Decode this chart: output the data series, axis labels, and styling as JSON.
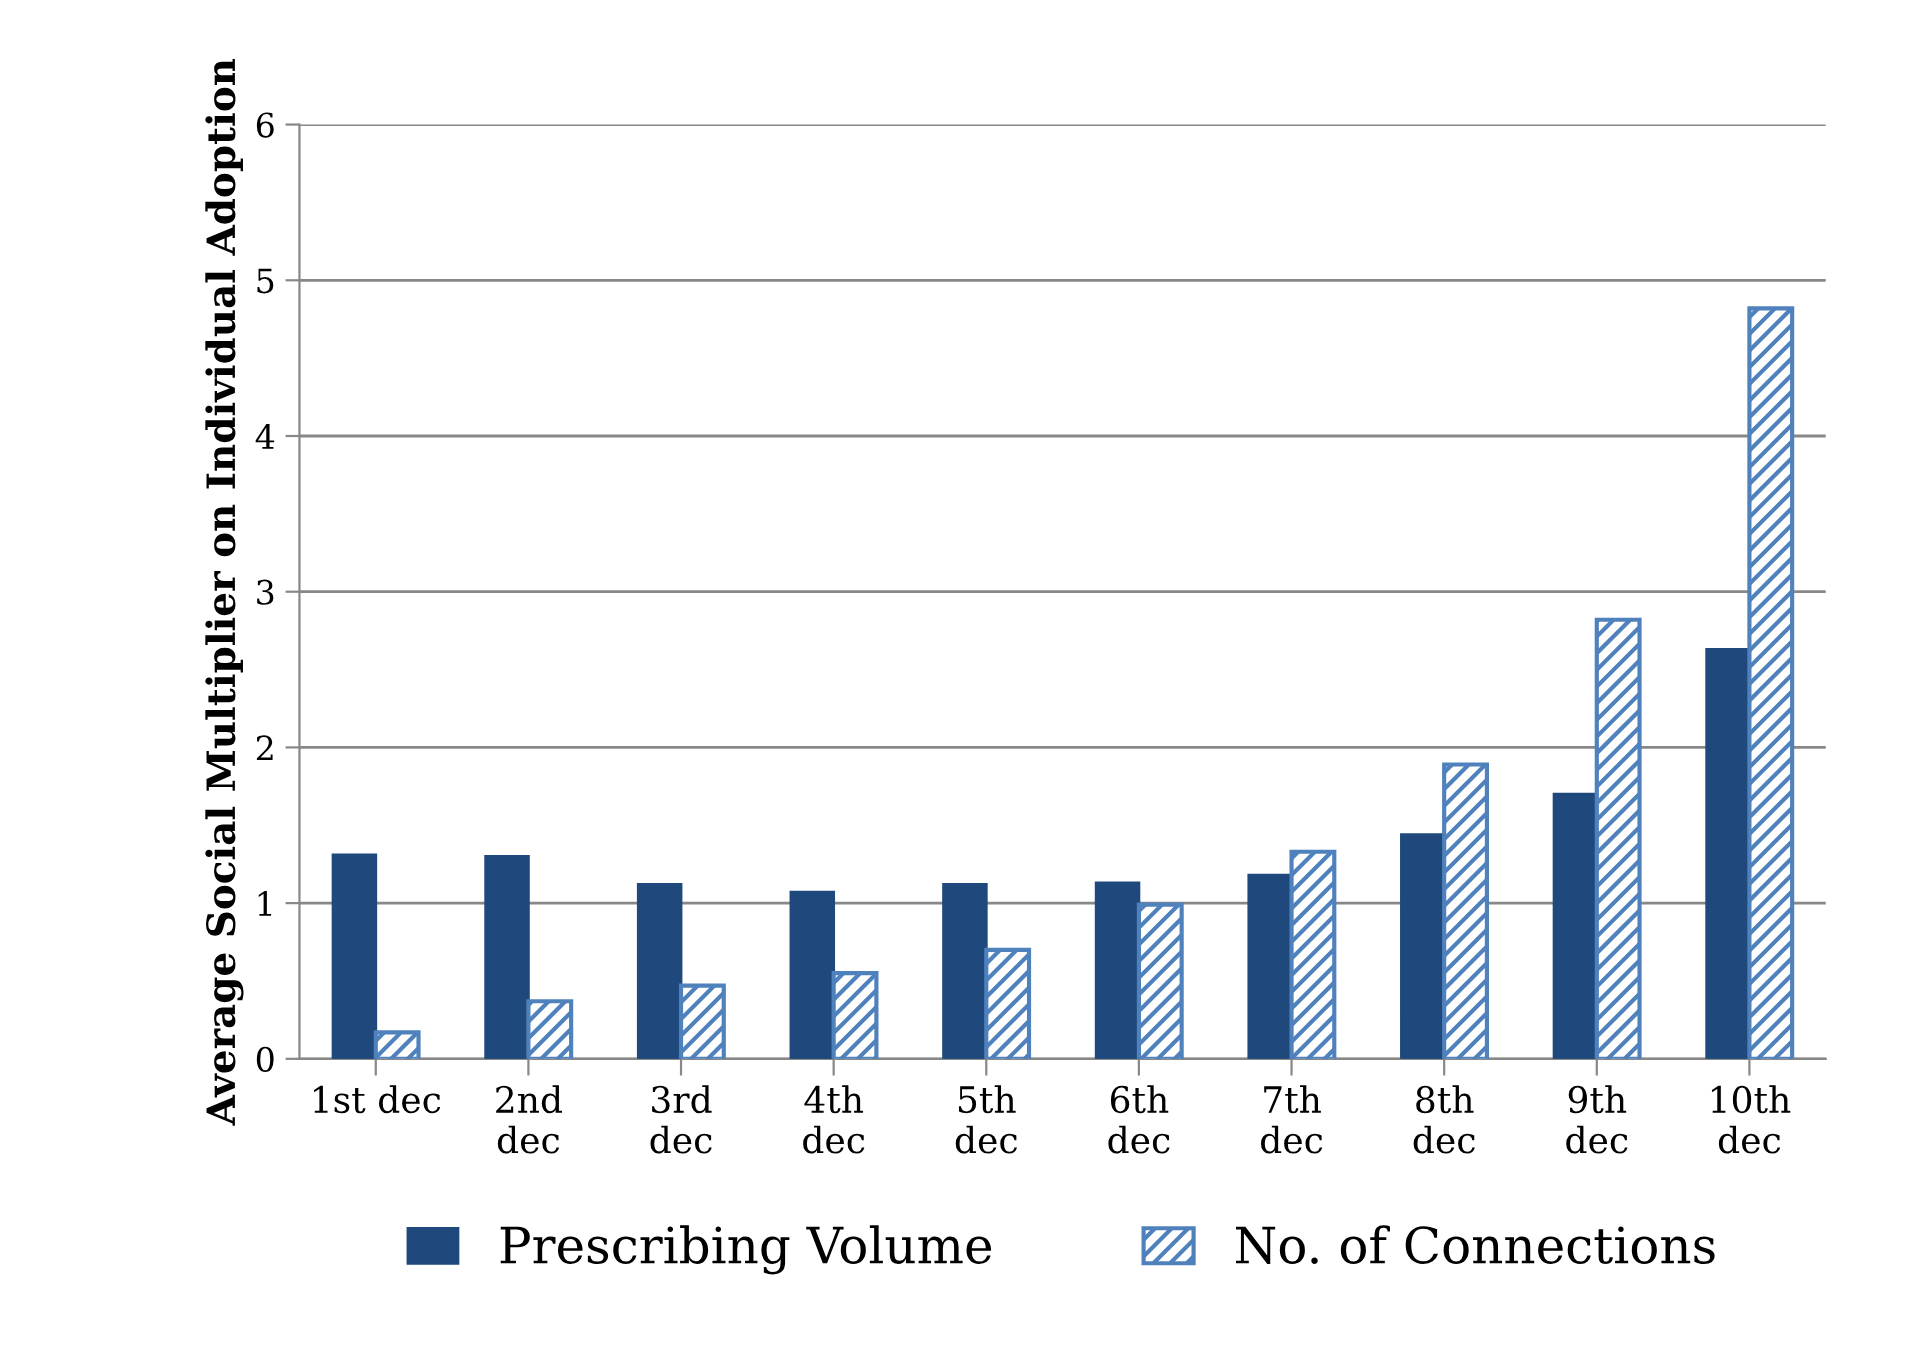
{
  "chart_data": {
    "type": "bar",
    "ylabel": "Average Social Multiplier on Individual Adoption",
    "categories": [
      "1st dec",
      "2nd\ndec",
      "3rd\ndec",
      "4th\ndec",
      "5th\ndec",
      "6th\ndec",
      "7th\ndec",
      "8th\ndec",
      "9th\ndec",
      "10th\ndec"
    ],
    "series": [
      {
        "name": "Prescribing Volume",
        "color": "#1f497d",
        "values": [
          1.31,
          1.3,
          1.12,
          1.07,
          1.12,
          1.13,
          1.18,
          1.44,
          1.7,
          2.63
        ]
      },
      {
        "name": "No. of Connections",
        "color": "#4f81bd",
        "values": [
          0.17,
          0.37,
          0.47,
          0.55,
          0.7,
          0.99,
          1.33,
          1.89,
          2.82,
          4.82
        ]
      }
    ],
    "ylim": [
      0,
      6
    ],
    "yticks": [
      0,
      1,
      2,
      3,
      4,
      5,
      6
    ],
    "grid": "y",
    "legend": "bottom"
  }
}
